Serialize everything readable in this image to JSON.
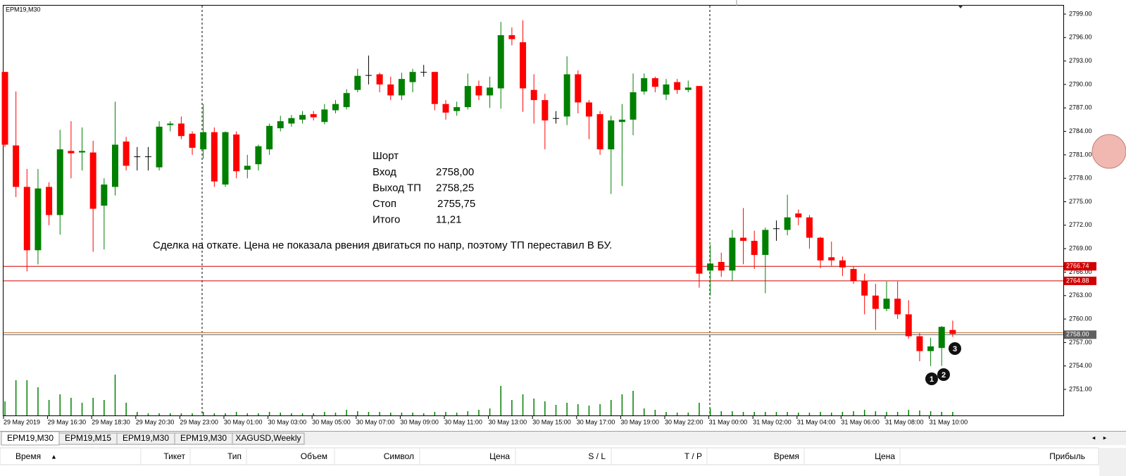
{
  "chart_data": {
    "type": "candlestick",
    "title": "EPM19,M30",
    "categories": [
      "29 May 2019",
      null,
      null,
      null,
      "29 May 16:30",
      null,
      null,
      null,
      "29 May 18:30",
      null,
      null,
      null,
      "29 May 20:30",
      null,
      null,
      null,
      "29 May 23:00",
      null,
      null,
      null,
      "30 May 01:00",
      null,
      null,
      null,
      "30 May 03:00",
      null,
      null,
      null,
      "30 May 05:00",
      null,
      null,
      null,
      "30 May 07:00",
      null,
      null,
      null,
      "30 May 09:00",
      null,
      null,
      null,
      "30 May 11:00",
      null,
      null,
      null,
      "30 May 13:00",
      null,
      null,
      null,
      "30 May 15:00",
      null,
      null,
      null,
      "30 May 17:00",
      null,
      null,
      null,
      "30 May 19:00",
      null,
      null,
      null,
      "30 May 22:00",
      null,
      null,
      null,
      "31 May 00:00",
      null,
      null,
      null,
      "31 May 02:00",
      null,
      null,
      null,
      "31 May 04:00",
      null,
      null,
      null,
      "31 May 06:00",
      null,
      null,
      null,
      "31 May 08:00",
      null,
      null,
      null,
      "31 May 10:00",
      null,
      null
    ],
    "open": [
      2791.6,
      2782.2,
      2776.9,
      2768.8,
      2776.9,
      2773.3,
      2781.5,
      2781.3,
      2781.3,
      2774.5,
      2776.9,
      2782.7,
      2780.8,
      2780.8,
      2779.4,
      2784.8,
      2785.0,
      2783.7,
      2781.7,
      2783.9,
      2777.2,
      2783.6,
      2779.1,
      2779.8,
      2781.7,
      2784.4,
      2785.0,
      2785.5,
      2786.2,
      2785.2,
      2786.7,
      2787.1,
      2789.3,
      2791.2,
      2791.3,
      2790.0,
      2788.6,
      2790.3,
      2791.6,
      2791.6,
      2787.5,
      2786.6,
      2787.1,
      2789.8,
      2788.6,
      2789.5,
      2796.3,
      2795.4,
      2789.3,
      2788.0,
      2785.7,
      2785.9,
      2791.3,
      2787.7,
      2786.2,
      2781.7,
      2785.2,
      2785.5,
      2789.1,
      2790.8,
      2788.7,
      2790.3,
      2789.3,
      2789.8,
      2766.2,
      2767.3,
      2766.2,
      2770.4,
      2770.0,
      2768.2,
      2771.6,
      2771.4,
      2773.5,
      2773.0,
      2770.4,
      2767.9,
      2767.5,
      2766.4,
      2764.9,
      2763.0,
      2761.3,
      2762.6,
      2760.6,
      2757.8,
      2755.9,
      2756.3,
      2758.6
    ],
    "high": [
      2791.6,
      2789.1,
      2779.2,
      2779.2,
      2777.5,
      2784.2,
      2785.3,
      2784.5,
      2782.8,
      2778.0,
      2787.8,
      2783.3,
      2782.0,
      2782.0,
      2785.3,
      2785.3,
      2785.9,
      2784.0,
      2787.5,
      2784.5,
      2784.0,
      2784.0,
      2781.0,
      2782.3,
      2785.0,
      2786.0,
      2786.1,
      2786.6,
      2786.6,
      2787.5,
      2788.0,
      2789.4,
      2792.0,
      2793.7,
      2791.5,
      2791.0,
      2791.5,
      2792.0,
      2792.5,
      2791.6,
      2788.0,
      2787.8,
      2791.4,
      2790.5,
      2791.0,
      2798.0,
      2797.3,
      2798.2,
      2791.3,
      2788.8,
      2786.6,
      2793.6,
      2791.8,
      2788.0,
      2786.6,
      2786.0,
      2787.5,
      2791.4,
      2791.4,
      2791.0,
      2790.7,
      2790.7,
      2790.5,
      2789.8,
      2769.5,
      2768.5,
      2771.4,
      2774.2,
      2771.3,
      2771.7,
      2772.6,
      2775.9,
      2774.0,
      2773.3,
      2770.5,
      2769.9,
      2768.0,
      2766.7,
      2765.8,
      2764.5,
      2764.8,
      2764.8,
      2762.4,
      2758.2,
      2757.6,
      2759.1,
      2759.8
    ],
    "low": [
      2782.0,
      2775.6,
      2766.1,
      2767.0,
      2772.0,
      2770.8,
      2778.0,
      2779.0,
      2768.6,
      2768.9,
      2775.8,
      2779.0,
      2779.0,
      2779.0,
      2779.0,
      2784.0,
      2783.0,
      2781.0,
      2780.5,
      2776.9,
      2776.9,
      2778.0,
      2778.0,
      2779.0,
      2781.0,
      2784.0,
      2784.6,
      2785.0,
      2785.4,
      2784.9,
      2786.3,
      2786.8,
      2789.0,
      2790.0,
      2789.0,
      2788.0,
      2788.0,
      2789.0,
      2791.0,
      2786.7,
      2785.5,
      2786.0,
      2786.8,
      2788.0,
      2787.0,
      2786.9,
      2795.0,
      2786.5,
      2785.0,
      2781.7,
      2785.0,
      2784.8,
      2786.3,
      2783.0,
      2781.0,
      2776.0,
      2777.0,
      2783.5,
      2788.7,
      2789.0,
      2788.0,
      2788.8,
      2789.0,
      2764.0,
      2763.0,
      2765.4,
      2764.9,
      2767.0,
      2766.4,
      2763.3,
      2770.0,
      2770.7,
      2772.0,
      2769.0,
      2766.5,
      2766.8,
      2765.5,
      2764.5,
      2760.6,
      2758.6,
      2761.0,
      2760.0,
      2757.5,
      2754.6,
      2754.0,
      2754.0,
      2757.7
    ],
    "close": [
      2782.3,
      2776.9,
      2768.8,
      2776.7,
      2773.3,
      2781.7,
      2781.2,
      2781.5,
      2774.1,
      2777.2,
      2782.3,
      2779.6,
      2780.8,
      2780.8,
      2784.6,
      2785.0,
      2783.4,
      2781.9,
      2783.9,
      2777.6,
      2783.9,
      2778.9,
      2779.6,
      2782.1,
      2784.7,
      2785.3,
      2785.7,
      2786.1,
      2785.8,
      2786.8,
      2787.5,
      2788.9,
      2791.1,
      2791.2,
      2790.0,
      2788.6,
      2790.7,
      2791.6,
      2791.6,
      2787.5,
      2786.4,
      2787.1,
      2789.8,
      2788.6,
      2789.6,
      2796.3,
      2795.8,
      2789.5,
      2788.0,
      2785.4,
      2785.7,
      2791.3,
      2787.7,
      2785.9,
      2781.7,
      2785.4,
      2785.5,
      2789.0,
      2790.8,
      2789.7,
      2790.0,
      2789.3,
      2789.6,
      2765.8,
      2767.1,
      2766.2,
      2770.4,
      2770.0,
      2768.2,
      2771.4,
      2771.6,
      2773.0,
      2773.0,
      2770.4,
      2767.5,
      2767.5,
      2766.6,
      2764.9,
      2763.0,
      2761.3,
      2762.6,
      2760.6,
      2757.8,
      2755.9,
      2756.5,
      2759.0,
      2758.1
    ],
    "volume": [
      20,
      50,
      50,
      40,
      22,
      30,
      25,
      18,
      25,
      22,
      58,
      18,
      5,
      3,
      3,
      3,
      3,
      3,
      5,
      3,
      3,
      5,
      3,
      3,
      5,
      4,
      3,
      3,
      3,
      5,
      4,
      8,
      6,
      5,
      5,
      4,
      4,
      4,
      3,
      5,
      5,
      4,
      6,
      8,
      10,
      42,
      22,
      30,
      24,
      20,
      15,
      18,
      16,
      14,
      16,
      22,
      30,
      35,
      10,
      8,
      5,
      4,
      4,
      18,
      10,
      6,
      6,
      5,
      5,
      5,
      5,
      5,
      4,
      4,
      5,
      4,
      5,
      6,
      8,
      6,
      5,
      5,
      8,
      7,
      6,
      5,
      5
    ],
    "up_color": "#008000",
    "down_color": "#ff0000",
    "ylim": [
      2747.67,
      2800.08
    ],
    "yticks": [
      {
        "value": 2751,
        "label": "2751.00"
      },
      {
        "value": 2754,
        "label": "2754.00"
      },
      {
        "value": 2757,
        "label": "2757.00"
      },
      {
        "value": 2760,
        "label": "2760.00"
      },
      {
        "value": 2763,
        "label": "2763.00"
      },
      {
        "value": 2766,
        "label": "2766.00"
      },
      {
        "value": 2769,
        "label": "2769.00"
      },
      {
        "value": 2772,
        "label": "2772.00"
      },
      {
        "value": 2775,
        "label": "2775.00"
      },
      {
        "value": 2778,
        "label": "2778.00"
      },
      {
        "value": 2781,
        "label": "2781.00"
      },
      {
        "value": 2784,
        "label": "2784.00"
      },
      {
        "value": 2787,
        "label": "2787.00"
      },
      {
        "value": 2790,
        "label": "2790.00"
      },
      {
        "value": 2793,
        "label": "2793.00"
      },
      {
        "value": 2796,
        "label": "2796.00"
      },
      {
        "value": 2799,
        "label": "2799.00"
      }
    ],
    "levels": [
      {
        "value": 2766.74,
        "label": "2766.74",
        "color": "#d00000"
      },
      {
        "value": 2764.88,
        "label": "2764.88",
        "color": "#d00000"
      },
      {
        "value": 2758.25,
        "color": "#c87832"
      },
      {
        "value": 2758,
        "label": "2758.00",
        "color": "#606060"
      }
    ],
    "trade": {
      "title": "Шорт",
      "rows": [
        [
          "Вход",
          "2758,00"
        ],
        [
          "Выход ТП",
          "2758,25"
        ],
        [
          "Стоп",
          "2755,75"
        ],
        [
          "Итого",
          "11,21"
        ]
      ]
    },
    "note": "Сделка на откате. Цена не показала рвения двигаться по напр, поэтому ТП переставил В БУ.",
    "markers": [
      "1",
      "2",
      "3"
    ]
  },
  "tabs": [
    "EPM19,M30",
    "EPM19,M15",
    "EPM19,M30",
    "EPM19,M30",
    "XAGUSD,Weekly"
  ],
  "table": {
    "columns": [
      "Время",
      "Тикет",
      "Тип",
      "Объем",
      "Символ",
      "Цена",
      "S / L",
      "T / P",
      "Время",
      "Цена",
      "Прибыль"
    ]
  }
}
